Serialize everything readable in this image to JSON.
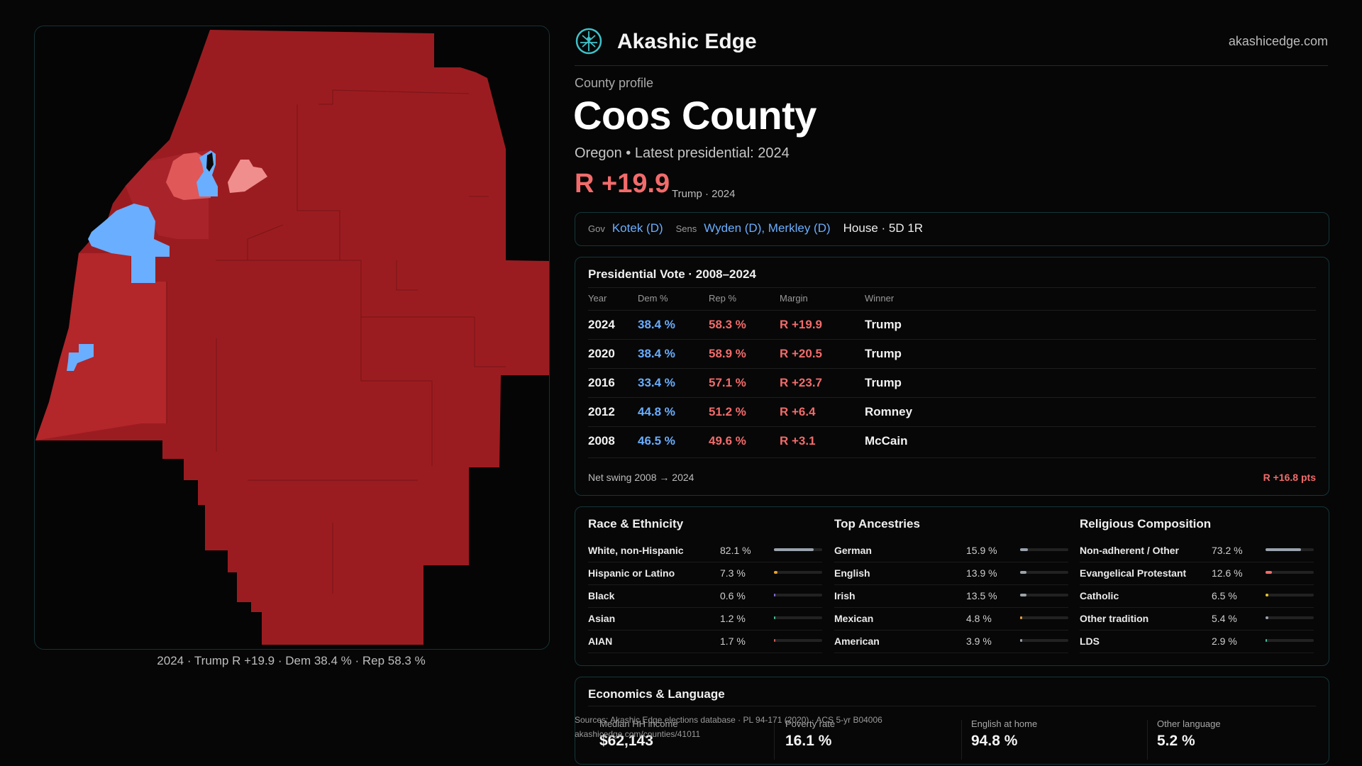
{
  "map": {
    "caption": "2024 · Trump R +19.9 · Dem 38.4 % · Rep 58.3 %",
    "colors": {
      "dark_rep": "#9b1c20",
      "mid_rep": "#b3262a",
      "light_rep": "#e05858",
      "lighter_rep": "#f08e8e",
      "dem": "#6aaeff"
    }
  },
  "header": {
    "brand": "Akashic Edge",
    "site": "akashicedge.com"
  },
  "profile": {
    "eyebrow": "County profile",
    "title": "Coos County",
    "subtitle": "Oregon • Latest presidential: 2024",
    "margin": "R +19.9",
    "margin_note": "Trump · 2024"
  },
  "officials": {
    "gov_label": "Gov",
    "gov": "Kotek (D)",
    "sens_label": "Sens",
    "sens": "Wyden (D), Merkley (D)",
    "house": "House · 5D 1R"
  },
  "presidential": {
    "title": "Presidential Vote · 2008–2024",
    "columns": [
      "Year",
      "Dem %",
      "Rep %",
      "Margin",
      "Winner"
    ],
    "rows": [
      {
        "year": "2024",
        "dem": "38.4 %",
        "rep": "58.3 %",
        "margin": "R +19.9",
        "winner": "Trump"
      },
      {
        "year": "2020",
        "dem": "38.4 %",
        "rep": "58.9 %",
        "margin": "R +20.5",
        "winner": "Trump"
      },
      {
        "year": "2016",
        "dem": "33.4 %",
        "rep": "57.1 %",
        "margin": "R +23.7",
        "winner": "Trump"
      },
      {
        "year": "2012",
        "dem": "44.8 %",
        "rep": "51.2 %",
        "margin": "R +6.4",
        "winner": "Romney"
      },
      {
        "year": "2008",
        "dem": "46.5 %",
        "rep": "49.6 %",
        "margin": "R +3.1",
        "winner": "McCain"
      }
    ],
    "swing_label": "Net swing 2008 → 2024",
    "swing_value": "R +16.8 pts"
  },
  "race": {
    "title": "Race & Ethnicity",
    "rows": [
      {
        "label": "White, non-Hispanic",
        "value": "82.1 %",
        "pct": 82.1,
        "color": "#9aa3ad"
      },
      {
        "label": "Hispanic or Latino",
        "value": "7.3 %",
        "pct": 7.3,
        "color": "#e6a12e"
      },
      {
        "label": "Black",
        "value": "0.6 %",
        "pct": 0.6,
        "color": "#8a6de0"
      },
      {
        "label": "Asian",
        "value": "1.2 %",
        "pct": 1.2,
        "color": "#3fbf9f"
      },
      {
        "label": "AIAN",
        "value": "1.7 %",
        "pct": 1.7,
        "color": "#d05a5a"
      }
    ]
  },
  "ancestries": {
    "title": "Top Ancestries",
    "rows": [
      {
        "label": "German",
        "value": "15.9 %",
        "pct": 15.9,
        "color": "#9aa3ad"
      },
      {
        "label": "English",
        "value": "13.9 %",
        "pct": 13.9,
        "color": "#9aa3ad"
      },
      {
        "label": "Irish",
        "value": "13.5 %",
        "pct": 13.5,
        "color": "#9aa3ad"
      },
      {
        "label": "Mexican",
        "value": "4.8 %",
        "pct": 4.8,
        "color": "#e6a12e"
      },
      {
        "label": "American",
        "value": "3.9 %",
        "pct": 3.9,
        "color": "#9aa3ad"
      }
    ]
  },
  "religion": {
    "title": "Religious Composition",
    "rows": [
      {
        "label": "Non-adherent / Other",
        "value": "73.2 %",
        "pct": 73.2,
        "color": "#9aa3ad"
      },
      {
        "label": "Evangelical Protestant",
        "value": "12.6 %",
        "pct": 12.6,
        "color": "#f26b6b"
      },
      {
        "label": "Catholic",
        "value": "6.5 %",
        "pct": 6.5,
        "color": "#e6c22e"
      },
      {
        "label": "Other tradition",
        "value": "5.4 %",
        "pct": 5.4,
        "color": "#9aa3ad"
      },
      {
        "label": "LDS",
        "value": "2.9 %",
        "pct": 2.9,
        "color": "#3fbfa0"
      }
    ]
  },
  "economics": {
    "title": "Economics & Language",
    "items": [
      {
        "label": "Median HH income",
        "value": "$62,143"
      },
      {
        "label": "Poverty rate",
        "value": "16.1 %"
      },
      {
        "label": "English at home",
        "value": "94.8 %"
      },
      {
        "label": "Other language",
        "value": "5.2 %"
      }
    ]
  },
  "sources": {
    "line1": "Sources: Akashic Edge elections database · PL 94-171 (2020) · ACS 5-yr B04006",
    "line2": "akashicedge.com/counties/41011"
  }
}
